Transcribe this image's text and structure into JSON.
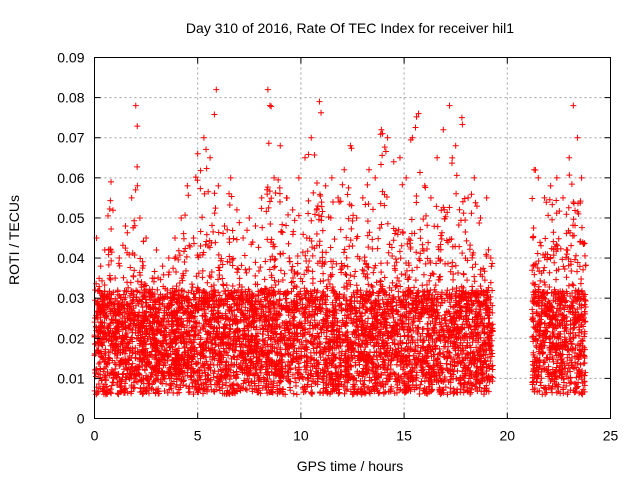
{
  "chart_data": {
    "type": "scatter",
    "title": "Day 310 of 2016, Rate Of TEC Index for receiver hil1",
    "xlabel": "GPS time / hours",
    "ylabel": "ROTI / TECUs",
    "xlim": [
      0,
      25
    ],
    "ylim": [
      0,
      0.09
    ],
    "xticks": [
      0,
      5,
      10,
      15,
      20,
      25
    ],
    "xtick_labels": [
      "0",
      "5",
      "10",
      "15",
      "20",
      "25"
    ],
    "yticks": [
      0,
      0.01,
      0.02,
      0.03,
      0.04,
      0.05,
      0.06,
      0.07,
      0.08,
      0.09
    ],
    "ytick_labels": [
      "0",
      "0.01",
      "0.02",
      "0.03",
      "0.04",
      "0.05",
      "0.06",
      "0.07",
      "0.08",
      "0.09"
    ],
    "grid": true,
    "marker": "+",
    "color": "#ff0000",
    "series": [
      {
        "name": "hil1",
        "segments": [
          [
            0.0,
            19.3
          ],
          [
            21.2,
            23.8
          ]
        ],
        "x": [
          0.1,
          0.3,
          0.5,
          0.8,
          1.0,
          1.2,
          1.5,
          1.8,
          2.0,
          2.2,
          2.5,
          2.8,
          3.0,
          3.3,
          3.6,
          3.9,
          4.2,
          4.5,
          4.8,
          5.0,
          5.3,
          5.6,
          5.9,
          6.0,
          6.3,
          6.6,
          6.9,
          7.2,
          7.5,
          7.8,
          8.1,
          8.4,
          8.5,
          8.7,
          9.0,
          9.3,
          9.6,
          9.9,
          10.2,
          10.5,
          10.9,
          11.2,
          11.5,
          11.8,
          12.1,
          12.4,
          12.7,
          13.0,
          13.3,
          13.6,
          13.9,
          14.2,
          14.5,
          14.8,
          15.1,
          15.4,
          15.7,
          16.0,
          16.3,
          16.6,
          16.9,
          17.2,
          17.5,
          17.8,
          18.1,
          18.4,
          18.7,
          19.0,
          19.2,
          21.3,
          21.5,
          21.8,
          22.1,
          22.4,
          22.7,
          23.0,
          23.2,
          23.4,
          23.6
        ],
        "y": [
          0.045,
          0.038,
          0.042,
          0.059,
          0.035,
          0.04,
          0.048,
          0.055,
          0.078,
          0.05,
          0.045,
          0.035,
          0.042,
          0.038,
          0.04,
          0.045,
          0.05,
          0.058,
          0.045,
          0.066,
          0.07,
          0.065,
          0.082,
          0.058,
          0.048,
          0.06,
          0.052,
          0.045,
          0.05,
          0.048,
          0.055,
          0.082,
          0.078,
          0.06,
          0.068,
          0.055,
          0.052,
          0.06,
          0.065,
          0.07,
          0.079,
          0.058,
          0.06,
          0.055,
          0.062,
          0.068,
          0.05,
          0.055,
          0.062,
          0.06,
          0.072,
          0.07,
          0.064,
          0.065,
          0.06,
          0.07,
          0.076,
          0.058,
          0.055,
          0.065,
          0.072,
          0.078,
          0.068,
          0.075,
          0.055,
          0.06,
          0.05,
          0.055,
          0.04,
          0.062,
          0.06,
          0.055,
          0.058,
          0.06,
          0.055,
          0.065,
          0.078,
          0.07,
          0.06
        ]
      }
    ]
  }
}
